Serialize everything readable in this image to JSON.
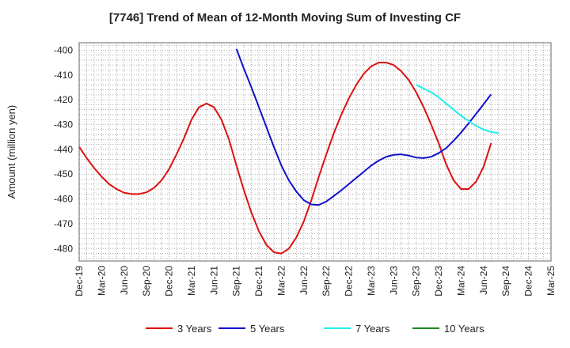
{
  "chart_data": {
    "type": "line",
    "title": "[7746]  Trend of Mean of 12-Month Moving Sum of Investing CF",
    "xlabel": "",
    "ylabel": "Amount (million yen)",
    "ylim": [
      -485,
      -397
    ],
    "yticks": [
      -400,
      -410,
      -420,
      -430,
      -440,
      -450,
      -460,
      -470,
      -480
    ],
    "ytick_labels": [
      "-400",
      "-410",
      "-420",
      "-430",
      "-440",
      "-450",
      "-460",
      "-470",
      "-480"
    ],
    "xtick_labels": [
      "Dec-19",
      "Mar-20",
      "Jun-20",
      "Sep-20",
      "Dec-20",
      "Mar-21",
      "Jun-21",
      "Sep-21",
      "Dec-21",
      "Mar-22",
      "Jun-22",
      "Sep-22",
      "Dec-22",
      "Mar-23",
      "Jun-23",
      "Sep-23",
      "Dec-23",
      "Mar-24",
      "Jun-24",
      "Sep-24",
      "Dec-24",
      "Mar-25"
    ],
    "x_months_range": [
      0,
      63
    ],
    "grid": true,
    "legend_position": "bottom",
    "series": [
      {
        "name": "3 Years",
        "color": "#dd1111",
        "start_month": 0,
        "values": [
          -439,
          -443.5,
          -447.5,
          -451,
          -454,
          -456,
          -457.5,
          -458,
          -458,
          -457.3,
          -455.5,
          -452.5,
          -448,
          -442,
          -435.5,
          -428,
          -423,
          -421.5,
          -423,
          -428,
          -436,
          -446.5,
          -456.5,
          -465.5,
          -473,
          -478.5,
          -481.5,
          -482,
          -480,
          -475.5,
          -469,
          -460.5,
          -451,
          -442,
          -433.5,
          -426,
          -419.5,
          -414,
          -409.5,
          -406.5,
          -405,
          -405,
          -406,
          -408.5,
          -412,
          -417,
          -423,
          -430,
          -437.5,
          -446,
          -452.5,
          -456,
          -456,
          -453,
          -447,
          -437.5
        ]
      },
      {
        "name": "5 Years",
        "color": "#1111cc",
        "start_month": 21,
        "values": [
          -399.5,
          -407.5,
          -415,
          -423,
          -431,
          -439,
          -446.5,
          -452.5,
          -457,
          -460.5,
          -462.2,
          -462.4,
          -461,
          -458.8,
          -456.5,
          -454,
          -451.5,
          -449,
          -446.5,
          -444.5,
          -443,
          -442.2,
          -442,
          -442.5,
          -443.3,
          -443.5,
          -443,
          -441.5,
          -439.5,
          -436.5,
          -433.2,
          -429.5,
          -425.7,
          -421.8,
          -417.8
        ]
      },
      {
        "name": "7 Years",
        "color": "#22eeee",
        "start_month": 45,
        "values": [
          -414,
          -415.5,
          -417,
          -419,
          -421.5,
          -424,
          -426.5,
          -428.5,
          -430.5,
          -432,
          -433,
          -433.4
        ]
      },
      {
        "name": "10 Years",
        "color": "#228822",
        "start_month": 0,
        "values": []
      }
    ]
  }
}
